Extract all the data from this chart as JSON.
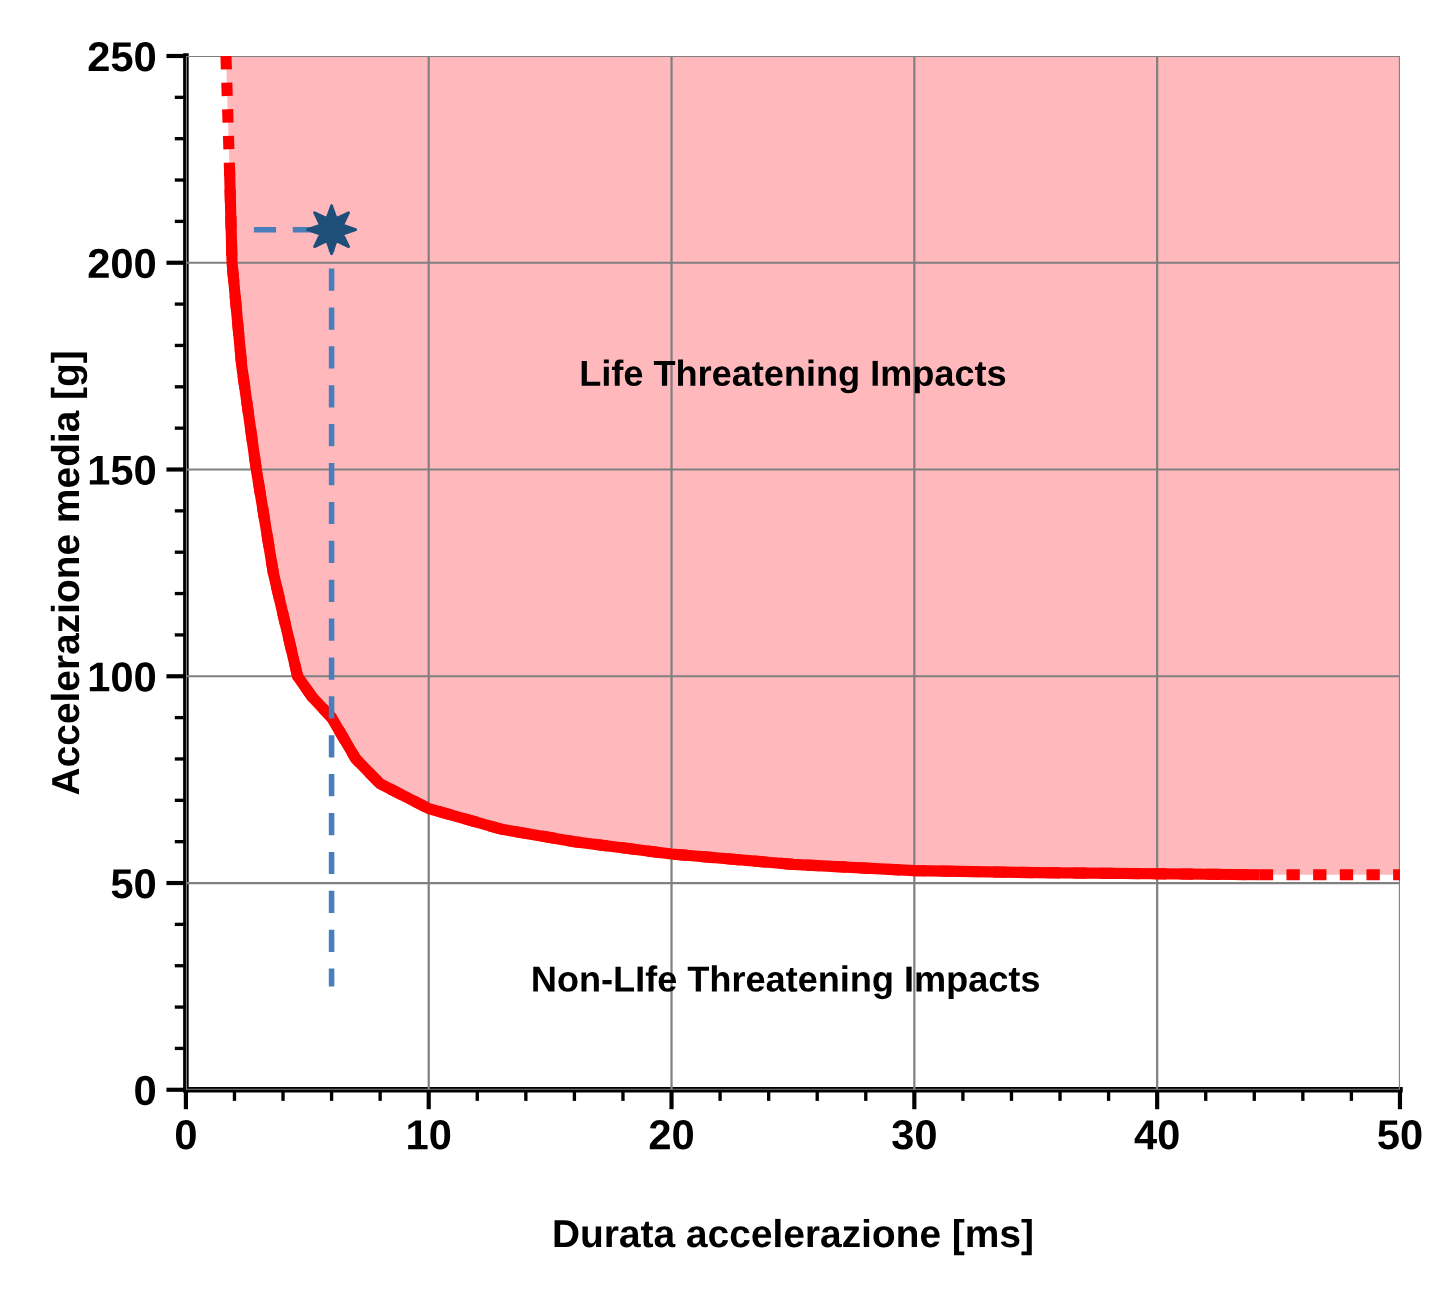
{
  "chart_data": {
    "type": "line",
    "xlabel": "Durata accelerazione [ms]",
    "ylabel": "Accelerazione media [g]",
    "xlim": [
      0,
      50
    ],
    "xticks": [
      0,
      10,
      20,
      30,
      40,
      50
    ],
    "ylim": [
      0,
      250
    ],
    "yticks": [
      0,
      50,
      100,
      150,
      200,
      250
    ],
    "grid": true,
    "legend": false,
    "series": [
      {
        "color": "#ff0000",
        "line_style": "dotted",
        "x": [
          1.65,
          1.8,
          1.9,
          2.3,
          2.9,
          3.6,
          4.6,
          5.2,
          6,
          7,
          8,
          10,
          13,
          16,
          20,
          25,
          30,
          35,
          44,
          50
        ],
        "values": [
          250,
          222,
          200,
          175,
          150,
          125,
          100,
          95,
          90,
          80,
          74,
          68,
          63,
          60,
          57,
          54.5,
          53,
          52.5,
          52,
          52
        ],
        "upper": [
          250,
          250,
          250,
          250,
          250,
          250,
          250,
          250,
          250,
          250,
          250,
          250,
          250,
          250,
          250,
          250,
          250,
          250,
          250,
          250
        ],
        "lower": [
          250,
          222,
          200,
          175,
          150,
          125,
          100,
          95,
          90,
          80,
          74,
          68,
          63,
          60,
          57,
          54.5,
          53,
          52.5,
          52,
          52
        ]
      },
      {
        "color": "#ff0000",
        "line_style": "solid",
        "x": [
          1.8,
          1.9,
          2.3,
          2.9,
          3.6,
          4.6,
          5.2,
          6,
          7,
          8,
          10,
          13,
          16,
          20,
          25,
          30,
          35,
          44
        ],
        "values": [
          222,
          200,
          175,
          150,
          125,
          100,
          95,
          90,
          80,
          74,
          68,
          63,
          60,
          57,
          54.5,
          53,
          52.5,
          52
        ]
      },
      {
        "color": "#4a7ebb",
        "line_style": "dashed",
        "x": [
          2.8,
          6
        ],
        "values": [
          208,
          208
        ]
      },
      {
        "color": "#4a7ebb",
        "line_style": "dashed",
        "x": [
          6,
          6
        ],
        "values": [
          208,
          25
        ]
      },
      {
        "type": "scatter",
        "color": "#1f4e79",
        "marker": "star",
        "x": [
          6
        ],
        "values": [
          208
        ]
      }
    ],
    "annotations": [
      "Life Threatening Impacts",
      "Non-LIfe Threatening Impacts"
    ]
  }
}
